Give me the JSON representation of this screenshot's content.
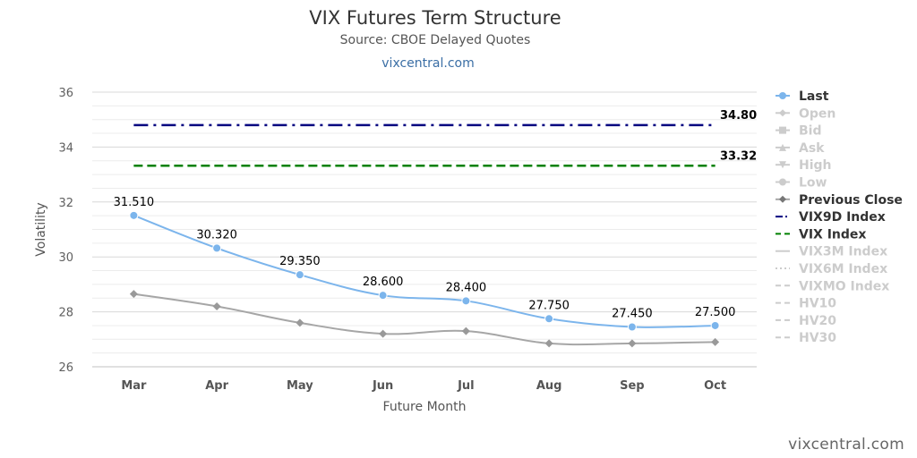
{
  "title": "VIX Futures Term Structure",
  "subtitle": "Source: CBOE Delayed Quotes",
  "link": "vixcentral.com",
  "credit": "vixcentral.com",
  "chart_data": {
    "type": "line",
    "categories": [
      "Mar",
      "Apr",
      "May",
      "Jun",
      "Jul",
      "Aug",
      "Sep",
      "Oct"
    ],
    "xlabel": "Future Month",
    "ylabel": "Volatility",
    "ylim": [
      26,
      36
    ],
    "yticks": [
      26,
      28,
      30,
      32,
      34,
      36
    ],
    "grid": true,
    "legend_position": "right",
    "series": [
      {
        "name": "Last",
        "values": [
          31.51,
          30.32,
          29.35,
          28.6,
          28.4,
          27.75,
          27.45,
          27.5
        ],
        "labels": [
          "31.510",
          "30.320",
          "29.350",
          "28.600",
          "28.400",
          "27.750",
          "27.450",
          "27.500"
        ],
        "color": "#7cb5ec"
      },
      {
        "name": "Previous Close",
        "values": [
          28.65,
          28.2,
          27.6,
          27.2,
          27.3,
          26.85,
          26.85,
          26.9
        ],
        "color": "#a6a6a6"
      }
    ],
    "reference_lines": [
      {
        "name": "VIX9D Index",
        "value": 34.8,
        "label": "34.80",
        "color": "#000080",
        "style": "dash-dot"
      },
      {
        "name": "VIX Index",
        "value": 33.32,
        "label": "33.32",
        "color": "#008000",
        "style": "dash"
      }
    ],
    "legend": [
      {
        "name": "Last",
        "state": "visible",
        "symbol": "circle",
        "color": "#7cb5ec"
      },
      {
        "name": "Open",
        "state": "hidden",
        "symbol": "diamond",
        "color": "#cccccc"
      },
      {
        "name": "Bid",
        "state": "hidden",
        "symbol": "square",
        "color": "#cccccc"
      },
      {
        "name": "Ask",
        "state": "hidden",
        "symbol": "triangle",
        "color": "#cccccc"
      },
      {
        "name": "High",
        "state": "hidden",
        "symbol": "triangle-down",
        "color": "#cccccc"
      },
      {
        "name": "Low",
        "state": "hidden",
        "symbol": "circle",
        "color": "#cccccc"
      },
      {
        "name": "Previous Close",
        "state": "visible",
        "symbol": "diamond",
        "color": "#777777"
      },
      {
        "name": "VIX9D Index",
        "state": "visible",
        "symbol": "line-dashdot",
        "color": "#000080"
      },
      {
        "name": "VIX Index",
        "state": "visible",
        "symbol": "line-dash",
        "color": "#008000"
      },
      {
        "name": "VIX3M Index",
        "state": "hidden",
        "symbol": "line-solid",
        "color": "#cccccc"
      },
      {
        "name": "VIX6M Index",
        "state": "hidden",
        "symbol": "line-dot",
        "color": "#cccccc"
      },
      {
        "name": "VIXMO Index",
        "state": "hidden",
        "symbol": "line-dash",
        "color": "#cccccc"
      },
      {
        "name": "HV10",
        "state": "hidden",
        "symbol": "line-dash",
        "color": "#cccccc"
      },
      {
        "name": "HV20",
        "state": "hidden",
        "symbol": "line-dash",
        "color": "#cccccc"
      },
      {
        "name": "HV30",
        "state": "hidden",
        "symbol": "line-dash",
        "color": "#cccccc"
      }
    ]
  }
}
